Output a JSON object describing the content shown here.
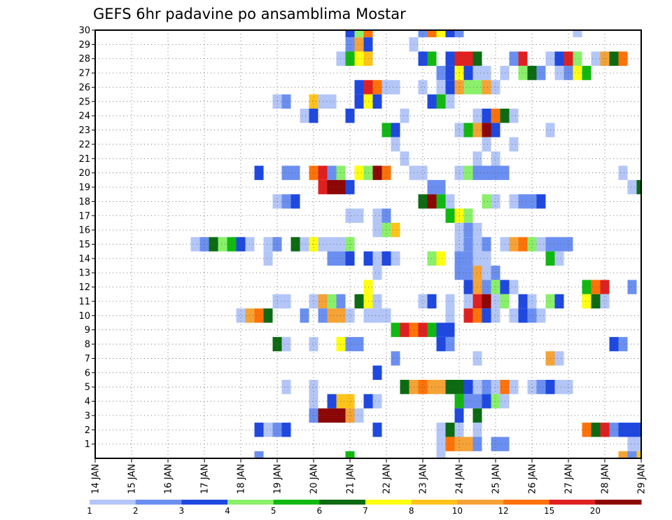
{
  "chart_data": {
    "type": "heatmap",
    "title": "GEFS 6hr padavine po ansamblima Mostar",
    "xlabel": "",
    "ylabel": "",
    "x_tick_labels": [
      "14 JAN",
      "15 JAN",
      "16 JAN",
      "17 JAN",
      "18 JAN",
      "19 JAN",
      "20 JAN",
      "21 JAN",
      "22 JAN",
      "23 JAN",
      "24 JAN",
      "25 JAN",
      "26 JAN",
      "27 JAN",
      "28 JAN",
      "29 JAN"
    ],
    "x_range_steps": [
      0,
      60
    ],
    "y_tick_labels": [
      "1",
      "2",
      "3",
      "4",
      "5",
      "6",
      "7",
      "8",
      "9",
      "10",
      "11",
      "12",
      "13",
      "14",
      "15",
      "16",
      "17",
      "18",
      "19",
      "20",
      "21",
      "22",
      "23",
      "24",
      "25",
      "26",
      "27",
      "28",
      "29",
      "30"
    ],
    "y_range": [
      0,
      30
    ],
    "grid": true,
    "legend": {
      "placement": "bottom",
      "labels": [
        "1",
        "2",
        "3",
        "4",
        "5",
        "6",
        "7",
        "8",
        "10",
        "12",
        "15",
        "20"
      ],
      "colors": [
        "#b3c6f7",
        "#6b8ff0",
        "#1f48e0",
        "#8af06a",
        "#12b812",
        "#0c6b12",
        "#ffff10",
        "#ffc31a",
        "#f5a236",
        "#ff7208",
        "#e02020",
        "#8c0606"
      ]
    },
    "note_cells": "each cell = [member(1-30 row), step(6h from 14 JAN 00Z), class index 0-11]",
    "cells": [
      [
        30,
        28,
        2
      ],
      [
        30,
        29,
        3
      ],
      [
        30,
        30,
        9
      ],
      [
        30,
        36,
        1
      ],
      [
        30,
        37,
        9
      ],
      [
        30,
        38,
        6
      ],
      [
        30,
        39,
        2
      ],
      [
        30,
        40,
        1
      ],
      [
        30,
        53,
        0
      ],
      [
        29,
        28,
        1
      ],
      [
        29,
        29,
        8
      ],
      [
        29,
        30,
        2
      ],
      [
        29,
        35,
        0
      ],
      [
        28,
        27,
        0
      ],
      [
        28,
        28,
        4
      ],
      [
        28,
        29,
        6
      ],
      [
        28,
        30,
        7
      ],
      [
        28,
        36,
        2
      ],
      [
        28,
        37,
        4
      ],
      [
        28,
        39,
        2
      ],
      [
        28,
        40,
        10
      ],
      [
        28,
        41,
        10
      ],
      [
        28,
        42,
        5
      ],
      [
        28,
        46,
        1
      ],
      [
        28,
        47,
        10
      ],
      [
        28,
        50,
        0
      ],
      [
        28,
        51,
        2
      ],
      [
        28,
        52,
        10
      ],
      [
        28,
        53,
        3
      ],
      [
        28,
        55,
        0
      ],
      [
        28,
        56,
        8
      ],
      [
        28,
        57,
        5
      ],
      [
        28,
        58,
        9
      ],
      [
        27,
        38,
        1
      ],
      [
        27,
        39,
        2
      ],
      [
        27,
        40,
        6
      ],
      [
        27,
        41,
        2
      ],
      [
        27,
        42,
        0
      ],
      [
        27,
        43,
        0
      ],
      [
        27,
        45,
        0
      ],
      [
        27,
        47,
        3
      ],
      [
        27,
        48,
        5
      ],
      [
        27,
        49,
        1
      ],
      [
        27,
        51,
        0
      ],
      [
        27,
        52,
        1
      ],
      [
        27,
        53,
        6
      ],
      [
        27,
        54,
        4
      ],
      [
        26,
        29,
        2
      ],
      [
        26,
        30,
        10
      ],
      [
        26,
        31,
        9
      ],
      [
        26,
        32,
        0
      ],
      [
        26,
        33,
        0
      ],
      [
        26,
        36,
        0
      ],
      [
        26,
        38,
        0
      ],
      [
        26,
        39,
        2
      ],
      [
        26,
        40,
        8
      ],
      [
        26,
        41,
        3
      ],
      [
        26,
        42,
        3
      ],
      [
        26,
        43,
        8
      ],
      [
        26,
        44,
        0
      ],
      [
        25,
        20,
        0
      ],
      [
        25,
        21,
        1
      ],
      [
        25,
        24,
        7
      ],
      [
        25,
        25,
        0
      ],
      [
        25,
        26,
        0
      ],
      [
        25,
        29,
        2
      ],
      [
        25,
        30,
        6
      ],
      [
        25,
        31,
        2
      ],
      [
        25,
        37,
        2
      ],
      [
        25,
        38,
        4
      ],
      [
        25,
        39,
        0
      ],
      [
        24,
        23,
        0
      ],
      [
        24,
        24,
        2
      ],
      [
        24,
        28,
        2
      ],
      [
        24,
        34,
        0
      ],
      [
        24,
        42,
        0
      ],
      [
        24,
        43,
        2
      ],
      [
        24,
        44,
        9
      ],
      [
        24,
        45,
        5
      ],
      [
        24,
        46,
        0
      ],
      [
        23,
        32,
        4
      ],
      [
        23,
        33,
        2
      ],
      [
        23,
        40,
        0
      ],
      [
        23,
        41,
        4
      ],
      [
        23,
        42,
        8
      ],
      [
        23,
        43,
        11
      ],
      [
        23,
        44,
        2
      ],
      [
        23,
        50,
        0
      ],
      [
        22,
        33,
        0
      ],
      [
        22,
        43,
        0
      ],
      [
        22,
        46,
        0
      ],
      [
        21,
        34,
        0
      ],
      [
        21,
        42,
        0
      ],
      [
        21,
        44,
        0
      ],
      [
        20,
        18,
        2
      ],
      [
        20,
        21,
        1
      ],
      [
        20,
        22,
        1
      ],
      [
        20,
        24,
        9
      ],
      [
        20,
        25,
        10
      ],
      [
        20,
        26,
        1
      ],
      [
        20,
        27,
        3
      ],
      [
        20,
        29,
        6
      ],
      [
        20,
        30,
        3
      ],
      [
        20,
        31,
        11
      ],
      [
        20,
        32,
        9
      ],
      [
        20,
        35,
        0
      ],
      [
        20,
        36,
        0
      ],
      [
        20,
        40,
        0
      ],
      [
        20,
        41,
        3
      ],
      [
        20,
        42,
        1
      ],
      [
        20,
        43,
        1
      ],
      [
        20,
        44,
        1
      ],
      [
        20,
        45,
        1
      ],
      [
        20,
        58,
        0
      ],
      [
        19,
        25,
        10
      ],
      [
        19,
        26,
        11
      ],
      [
        19,
        27,
        11
      ],
      [
        19,
        28,
        2
      ],
      [
        19,
        37,
        1
      ],
      [
        19,
        38,
        1
      ],
      [
        19,
        59,
        0
      ],
      [
        19,
        60,
        5
      ],
      [
        18,
        20,
        0
      ],
      [
        18,
        21,
        1
      ],
      [
        18,
        22,
        2
      ],
      [
        18,
        36,
        5
      ],
      [
        18,
        37,
        11
      ],
      [
        18,
        38,
        4
      ],
      [
        18,
        39,
        0
      ],
      [
        18,
        43,
        3
      ],
      [
        18,
        44,
        0
      ],
      [
        18,
        46,
        0
      ],
      [
        18,
        47,
        1
      ],
      [
        18,
        48,
        1
      ],
      [
        18,
        49,
        2
      ],
      [
        17,
        28,
        0
      ],
      [
        17,
        29,
        0
      ],
      [
        17,
        31,
        0
      ],
      [
        17,
        32,
        1
      ],
      [
        17,
        39,
        4
      ],
      [
        17,
        40,
        6
      ],
      [
        17,
        41,
        3
      ],
      [
        16,
        31,
        0
      ],
      [
        16,
        32,
        3
      ],
      [
        16,
        33,
        7
      ],
      [
        16,
        40,
        0
      ],
      [
        16,
        41,
        1
      ],
      [
        16,
        42,
        0
      ],
      [
        15,
        11,
        0
      ],
      [
        15,
        12,
        1
      ],
      [
        15,
        13,
        5
      ],
      [
        15,
        14,
        3
      ],
      [
        15,
        15,
        4
      ],
      [
        15,
        16,
        2
      ],
      [
        15,
        17,
        0
      ],
      [
        15,
        19,
        0
      ],
      [
        15,
        20,
        1
      ],
      [
        15,
        22,
        5
      ],
      [
        15,
        23,
        0
      ],
      [
        15,
        24,
        6
      ],
      [
        15,
        25,
        0
      ],
      [
        15,
        26,
        0
      ],
      [
        15,
        27,
        0
      ],
      [
        15,
        28,
        3
      ],
      [
        15,
        40,
        0
      ],
      [
        15,
        41,
        1
      ],
      [
        15,
        42,
        0
      ],
      [
        15,
        43,
        1
      ],
      [
        15,
        45,
        0
      ],
      [
        15,
        46,
        8
      ],
      [
        15,
        47,
        9
      ],
      [
        15,
        48,
        3
      ],
      [
        15,
        49,
        0
      ],
      [
        15,
        50,
        1
      ],
      [
        15,
        51,
        1
      ],
      [
        15,
        52,
        1
      ],
      [
        14,
        19,
        0
      ],
      [
        14,
        26,
        1
      ],
      [
        14,
        27,
        1
      ],
      [
        14,
        28,
        2
      ],
      [
        14,
        30,
        2
      ],
      [
        14,
        31,
        0
      ],
      [
        14,
        32,
        2
      ],
      [
        14,
        33,
        0
      ],
      [
        14,
        37,
        3
      ],
      [
        14,
        38,
        6
      ],
      [
        14,
        40,
        1
      ],
      [
        14,
        41,
        1
      ],
      [
        14,
        42,
        0
      ],
      [
        14,
        43,
        0
      ],
      [
        14,
        50,
        4
      ],
      [
        14,
        51,
        0
      ],
      [
        13,
        31,
        0
      ],
      [
        13,
        40,
        1
      ],
      [
        13,
        41,
        1
      ],
      [
        13,
        42,
        8
      ],
      [
        13,
        43,
        0
      ],
      [
        13,
        44,
        1
      ],
      [
        12,
        30,
        6
      ],
      [
        12,
        41,
        2
      ],
      [
        12,
        42,
        8
      ],
      [
        12,
        43,
        1
      ],
      [
        12,
        44,
        3
      ],
      [
        12,
        45,
        2
      ],
      [
        12,
        46,
        0
      ],
      [
        12,
        54,
        4
      ],
      [
        12,
        55,
        9
      ],
      [
        12,
        56,
        10
      ],
      [
        12,
        59,
        1
      ],
      [
        11,
        20,
        0
      ],
      [
        11,
        21,
        0
      ],
      [
        11,
        24,
        0
      ],
      [
        11,
        25,
        8
      ],
      [
        11,
        26,
        3
      ],
      [
        11,
        27,
        1
      ],
      [
        11,
        29,
        5
      ],
      [
        11,
        30,
        6
      ],
      [
        11,
        31,
        0
      ],
      [
        11,
        36,
        0
      ],
      [
        11,
        37,
        2
      ],
      [
        11,
        39,
        0
      ],
      [
        11,
        41,
        0
      ],
      [
        11,
        42,
        10
      ],
      [
        11,
        43,
        11
      ],
      [
        11,
        44,
        0
      ],
      [
        11,
        45,
        3
      ],
      [
        11,
        47,
        2
      ],
      [
        11,
        48,
        0
      ],
      [
        11,
        50,
        3
      ],
      [
        11,
        51,
        2
      ],
      [
        11,
        54,
        6
      ],
      [
        11,
        55,
        5
      ],
      [
        11,
        56,
        0
      ],
      [
        10,
        16,
        0
      ],
      [
        10,
        17,
        8
      ],
      [
        10,
        18,
        9
      ],
      [
        10,
        19,
        5
      ],
      [
        10,
        23,
        1
      ],
      [
        10,
        25,
        1
      ],
      [
        10,
        26,
        8
      ],
      [
        10,
        27,
        8
      ],
      [
        10,
        28,
        0
      ],
      [
        10,
        30,
        0
      ],
      [
        10,
        31,
        0
      ],
      [
        10,
        32,
        0
      ],
      [
        10,
        39,
        0
      ],
      [
        10,
        41,
        10
      ],
      [
        10,
        42,
        9
      ],
      [
        10,
        43,
        2
      ],
      [
        10,
        44,
        0
      ],
      [
        10,
        46,
        0
      ],
      [
        10,
        47,
        2
      ],
      [
        10,
        48,
        1
      ],
      [
        10,
        49,
        0
      ],
      [
        9,
        33,
        4
      ],
      [
        9,
        34,
        10
      ],
      [
        9,
        35,
        9
      ],
      [
        9,
        36,
        10
      ],
      [
        9,
        37,
        4
      ],
      [
        9,
        38,
        2
      ],
      [
        9,
        39,
        2
      ],
      [
        8,
        20,
        5
      ],
      [
        8,
        21,
        0
      ],
      [
        8,
        24,
        0
      ],
      [
        8,
        27,
        6
      ],
      [
        8,
        28,
        1
      ],
      [
        8,
        29,
        1
      ],
      [
        8,
        38,
        2
      ],
      [
        8,
        39,
        1
      ],
      [
        8,
        57,
        2
      ],
      [
        8,
        58,
        1
      ],
      [
        7,
        33,
        1
      ],
      [
        7,
        42,
        0
      ],
      [
        7,
        50,
        8
      ],
      [
        7,
        51,
        0
      ],
      [
        6,
        31,
        2
      ],
      [
        5,
        21,
        0
      ],
      [
        5,
        24,
        0
      ],
      [
        5,
        34,
        5
      ],
      [
        5,
        35,
        8
      ],
      [
        5,
        36,
        9
      ],
      [
        5,
        37,
        8
      ],
      [
        5,
        38,
        8
      ],
      [
        5,
        39,
        5
      ],
      [
        5,
        40,
        5
      ],
      [
        5,
        41,
        2
      ],
      [
        5,
        42,
        0
      ],
      [
        5,
        43,
        1
      ],
      [
        5,
        44,
        0
      ],
      [
        5,
        45,
        9
      ],
      [
        5,
        46,
        0
      ],
      [
        5,
        48,
        0
      ],
      [
        5,
        49,
        1
      ],
      [
        5,
        50,
        2
      ],
      [
        5,
        51,
        0
      ],
      [
        5,
        52,
        0
      ],
      [
        4,
        24,
        0
      ],
      [
        4,
        26,
        2
      ],
      [
        4,
        27,
        7
      ],
      [
        4,
        28,
        7
      ],
      [
        4,
        30,
        2
      ],
      [
        4,
        31,
        0
      ],
      [
        4,
        40,
        4
      ],
      [
        4,
        41,
        1
      ],
      [
        4,
        42,
        1
      ],
      [
        4,
        43,
        2
      ],
      [
        4,
        44,
        3
      ],
      [
        4,
        45,
        0
      ],
      [
        3,
        24,
        1
      ],
      [
        3,
        25,
        11
      ],
      [
        3,
        26,
        11
      ],
      [
        3,
        27,
        11
      ],
      [
        3,
        28,
        8
      ],
      [
        3,
        29,
        0
      ],
      [
        3,
        40,
        2
      ],
      [
        3,
        42,
        5
      ],
      [
        2,
        18,
        2
      ],
      [
        2,
        19,
        0
      ],
      [
        2,
        20,
        1
      ],
      [
        2,
        21,
        2
      ],
      [
        2,
        31,
        2
      ],
      [
        2,
        38,
        0
      ],
      [
        2,
        39,
        5
      ],
      [
        2,
        40,
        0
      ],
      [
        2,
        42,
        0
      ],
      [
        2,
        54,
        9
      ],
      [
        2,
        55,
        5
      ],
      [
        2,
        56,
        10
      ],
      [
        2,
        57,
        1
      ],
      [
        2,
        58,
        2
      ],
      [
        2,
        59,
        2
      ],
      [
        2,
        60,
        2
      ],
      [
        1,
        38,
        0
      ],
      [
        1,
        39,
        9
      ],
      [
        1,
        40,
        8
      ],
      [
        1,
        41,
        8
      ],
      [
        1,
        42,
        1
      ],
      [
        1,
        44,
        1
      ],
      [
        1,
        45,
        1
      ],
      [
        1,
        59,
        0
      ],
      [
        1,
        60,
        0
      ],
      [
        0,
        18,
        1
      ],
      [
        0,
        28,
        4
      ],
      [
        0,
        38,
        0
      ],
      [
        0,
        58,
        8
      ],
      [
        0,
        59,
        1
      ],
      [
        0,
        60,
        7
      ]
    ]
  }
}
